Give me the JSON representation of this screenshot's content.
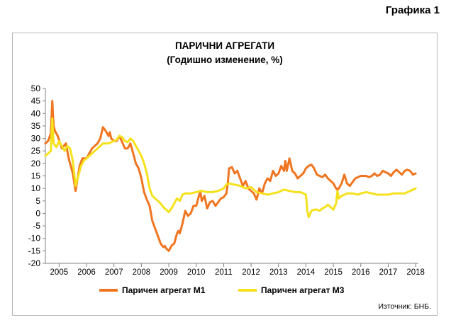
{
  "figure_label": "Графика 1",
  "source": "Източник: БНБ.",
  "chart_data": {
    "type": "line",
    "title": "ПАРИЧНИ АГРЕГАТИ",
    "subtitle": "(Годишно изменение, %)",
    "xlabel": "",
    "ylabel": "",
    "ylim": [
      -20,
      50
    ],
    "yticks": [
      "50",
      "45",
      "40",
      "35",
      "30",
      "25",
      "20",
      "15",
      "10",
      "5",
      "0",
      "-5",
      "-10",
      "-15",
      "-20"
    ],
    "xlim": [
      2004.5,
      2018.1
    ],
    "xticks": [
      "2005",
      "2006",
      "2007",
      "2008",
      "2009",
      "2010",
      "2011",
      "2012",
      "2013",
      "2014",
      "2015",
      "2016",
      "2017",
      "2018"
    ],
    "grid": false,
    "legend_position": "bottom",
    "series": [
      {
        "name": "Паричен агрегат М1",
        "color": "#f07520",
        "x": [
          2004.5,
          2004.6,
          2004.7,
          2004.75,
          2004.8,
          2004.85,
          2004.95,
          2005.1,
          2005.25,
          2005.35,
          2005.5,
          2005.6,
          2005.75,
          2005.85,
          2006.0,
          2006.2,
          2006.4,
          2006.5,
          2006.6,
          2006.7,
          2006.8,
          2006.85,
          2006.9,
          2007.0,
          2007.1,
          2007.2,
          2007.3,
          2007.4,
          2007.5,
          2007.6,
          2007.7,
          2007.8,
          2007.9,
          2008.0,
          2008.1,
          2008.2,
          2008.3,
          2008.4,
          2008.5,
          2008.6,
          2008.7,
          2008.8,
          2008.85,
          2008.9,
          2009.0,
          2009.1,
          2009.2,
          2009.3,
          2009.35,
          2009.4,
          2009.5,
          2009.6,
          2009.7,
          2009.8,
          2009.9,
          2010.0,
          2010.1,
          2010.15,
          2010.2,
          2010.3,
          2010.4,
          2010.5,
          2010.6,
          2010.7,
          2010.8,
          2010.9,
          2011.0,
          2011.1,
          2011.15,
          2011.2,
          2011.3,
          2011.4,
          2011.5,
          2011.6,
          2011.7,
          2011.8,
          2011.9,
          2012.0,
          2012.1,
          2012.2,
          2012.3,
          2012.4,
          2012.5,
          2012.6,
          2012.7,
          2012.8,
          2012.9,
          2013.0,
          2013.1,
          2013.2,
          2013.25,
          2013.3,
          2013.4,
          2013.5,
          2013.6,
          2013.7,
          2013.8,
          2013.9,
          2014.0,
          2014.1,
          2014.2,
          2014.3,
          2014.4,
          2014.5,
          2014.6,
          2014.7,
          2014.8,
          2014.9,
          2015.0,
          2015.1,
          2015.15,
          2015.2,
          2015.3,
          2015.4,
          2015.5,
          2015.6,
          2015.8,
          2016.0,
          2016.2,
          2016.3,
          2016.4,
          2016.5,
          2016.6,
          2016.7,
          2016.8,
          2017.0,
          2017.1,
          2017.2,
          2017.3,
          2017.4,
          2017.5,
          2017.6,
          2017.7,
          2017.8,
          2017.9,
          2018.0
        ],
        "values": [
          28,
          29,
          32,
          45,
          35,
          33,
          31,
          26,
          28,
          22,
          16,
          9,
          19,
          22,
          22,
          26,
          28,
          30,
          34.5,
          33,
          31,
          32.5,
          30,
          29,
          29,
          31,
          28.5,
          26,
          26,
          28,
          24,
          20,
          18,
          14,
          8.5,
          5.5,
          3,
          -3,
          -6,
          -9,
          -12,
          -13.5,
          -13,
          -14,
          -15,
          -13,
          -12,
          -8,
          -7,
          -8,
          -4,
          1,
          -1,
          0,
          3,
          3,
          7,
          9,
          5,
          7,
          2,
          4.5,
          5,
          3,
          4.5,
          6,
          6.5,
          8,
          12,
          18,
          18.5,
          16,
          17,
          14,
          11,
          13,
          10,
          9,
          8,
          5.5,
          10,
          8,
          12,
          14,
          13,
          17,
          15,
          16,
          19,
          17,
          21,
          17,
          22,
          17,
          16,
          14,
          15,
          16,
          18,
          19,
          19.5,
          18,
          15.5,
          15,
          14.5,
          15.5,
          14,
          13,
          12,
          10,
          9.5,
          10,
          12,
          15.5,
          12,
          11,
          14,
          15,
          15,
          14.5,
          15,
          16,
          15,
          15.5,
          17,
          16,
          15,
          16.5,
          17.5,
          16.5,
          15.5,
          17,
          17.5,
          17,
          15.5,
          16
        ]
      },
      {
        "name": "Паричен агрегат М3",
        "color": "#f5e11c",
        "x": [
          2004.5,
          2004.6,
          2004.7,
          2004.75,
          2004.8,
          2004.9,
          2005.0,
          2005.1,
          2005.2,
          2005.3,
          2005.4,
          2005.5,
          2005.6,
          2005.7,
          2005.8,
          2005.9,
          2006.0,
          2006.2,
          2006.4,
          2006.6,
          2006.8,
          2007.0,
          2007.1,
          2007.2,
          2007.3,
          2007.4,
          2007.5,
          2007.6,
          2007.7,
          2007.8,
          2007.9,
          2008.0,
          2008.1,
          2008.2,
          2008.3,
          2008.4,
          2008.5,
          2008.6,
          2008.7,
          2008.8,
          2008.9,
          2009.0,
          2009.1,
          2009.2,
          2009.3,
          2009.4,
          2009.5,
          2009.6,
          2009.8,
          2010.0,
          2010.2,
          2010.4,
          2010.6,
          2010.8,
          2011.0,
          2011.1,
          2011.2,
          2011.4,
          2011.6,
          2011.8,
          2012.0,
          2012.2,
          2012.4,
          2012.6,
          2012.8,
          2013.0,
          2013.2,
          2013.4,
          2013.6,
          2013.8,
          2013.9,
          2014.0,
          2014.05,
          2014.1,
          2014.2,
          2014.3,
          2014.4,
          2014.5,
          2014.6,
          2014.7,
          2014.8,
          2014.9,
          2015.0,
          2015.1,
          2015.15,
          2015.2,
          2015.3,
          2015.5,
          2015.7,
          2015.9,
          2016.0,
          2016.2,
          2016.4,
          2016.6,
          2016.8,
          2017.0,
          2017.2,
          2017.4,
          2017.6,
          2017.8,
          2018.0
        ],
        "values": [
          23,
          24,
          25,
          38,
          28,
          26.5,
          29,
          27,
          25,
          27,
          26,
          21,
          11,
          15,
          19,
          21,
          22,
          24,
          26,
          28,
          28,
          29,
          29.5,
          31,
          30.5,
          29,
          28.5,
          30,
          29,
          27,
          25,
          23,
          20,
          16,
          10,
          7,
          6,
          5,
          4,
          2.5,
          1.5,
          0.5,
          2,
          4,
          6,
          5,
          7.5,
          8,
          8,
          8.5,
          9,
          8.5,
          8.5,
          9,
          10,
          11.5,
          12,
          11.5,
          11,
          10,
          10.5,
          8.5,
          8,
          7.5,
          8,
          8.5,
          9.5,
          9,
          8.5,
          8.5,
          8,
          7.5,
          1,
          -1.5,
          1,
          1.5,
          1.5,
          1,
          2,
          2.5,
          3.5,
          2.5,
          1.5,
          4,
          9,
          6,
          7,
          8,
          8,
          7.5,
          8,
          8.5,
          8,
          7.5,
          7.5,
          7.5,
          8,
          8,
          8,
          9,
          10
        ]
      }
    ]
  }
}
